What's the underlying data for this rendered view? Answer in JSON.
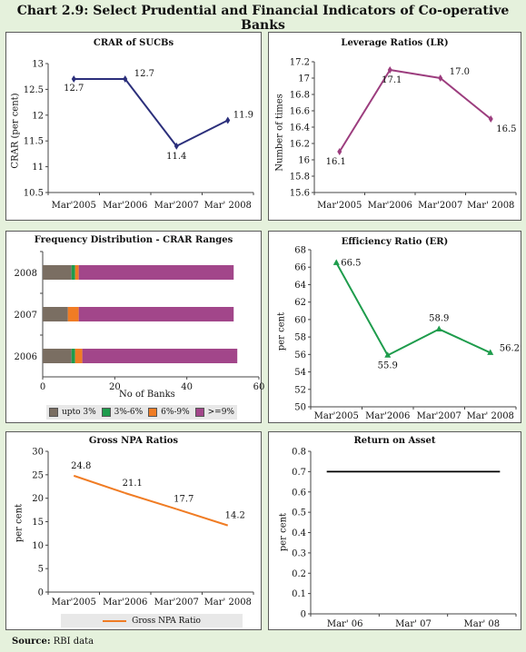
{
  "title": "Chart 2.9: Select Prudential and Financial Indicators of Co-operative Banks",
  "source_label": "Source:",
  "source_text": " RBI data",
  "colors": {
    "background": "#e5f1dc",
    "navy": "#2b2f7b",
    "magenta": "#9c3d7e",
    "green": "#1e9c4c",
    "orange": "#f07c24",
    "grey": "#7a6e62",
    "purple": "#a2468a",
    "black": "#000000"
  },
  "chart_data": [
    {
      "id": "crar",
      "type": "line",
      "title": "CRAR of SUCBs",
      "ylabel": "CRAR (per cent)",
      "xlabel": "",
      "categories": [
        "Mar'2005",
        "Mar'2006",
        "Mar'2007",
        "Mar' 2008"
      ],
      "values": [
        12.7,
        12.7,
        11.4,
        11.9
      ],
      "data_labels": [
        "12.7",
        "12.7",
        "11.4",
        "11.9"
      ],
      "ylim": [
        10.5,
        13
      ],
      "yticks": [
        "10.5",
        "11",
        "11.5",
        "12",
        "12.5",
        "13"
      ],
      "color": "#2b2f7b",
      "grid": false
    },
    {
      "id": "leverage",
      "type": "line",
      "title": "Leverage Ratios (LR)",
      "ylabel": "Number of times",
      "xlabel": "",
      "categories": [
        "Mar'2005",
        "Mar'2006",
        "Mar'2007",
        "Mar' 2008"
      ],
      "values": [
        16.1,
        17.1,
        17.0,
        16.5
      ],
      "data_labels": [
        "16.1",
        "17.1",
        "17.0",
        "16.5"
      ],
      "ylim": [
        15.6,
        17.2
      ],
      "yticks": [
        "15.6",
        "15.8",
        "16",
        "16.2",
        "16.4",
        "16.6",
        "16.8",
        "17",
        "17.2"
      ],
      "color": "#9c3d7e",
      "grid": false
    },
    {
      "id": "frequency",
      "type": "bar",
      "orientation": "horizontal",
      "stacked": true,
      "title": "Frequency Distribution - CRAR Ranges",
      "xlabel": "No of Banks",
      "ylabel": "",
      "categories": [
        "2008",
        "2007",
        "2006"
      ],
      "series": [
        {
          "name": "upto 3%",
          "values": [
            8,
            7,
            8
          ],
          "color": "#7a6e62"
        },
        {
          "name": "3%-6%",
          "values": [
            1,
            0,
            1
          ],
          "color": "#1e9c4c"
        },
        {
          "name": "6%-9%",
          "values": [
            1,
            3,
            2
          ],
          "color": "#f07c24"
        },
        {
          "name": ">=9%",
          "values": [
            43,
            43,
            43
          ],
          "color": "#a2468a"
        }
      ],
      "xlim": [
        0,
        60
      ],
      "xticks": [
        "0",
        "20",
        "40",
        "60"
      ],
      "legend": "bottom",
      "grid": false
    },
    {
      "id": "efficiency",
      "type": "line",
      "title": "Efficiency Ratio (ER)",
      "ylabel": "per cent",
      "xlabel": "",
      "categories": [
        "Mar'2005",
        "Mar'2006",
        "Mar'2007",
        "Mar' 2008"
      ],
      "values": [
        66.5,
        55.9,
        58.9,
        56.2
      ],
      "data_labels": [
        "66.5",
        "55.9",
        "58.9",
        "56.2"
      ],
      "ylim": [
        50,
        68
      ],
      "yticks": [
        "50",
        "52",
        "54",
        "56",
        "58",
        "60",
        "62",
        "64",
        "66",
        "68"
      ],
      "color": "#1e9c4c",
      "grid": false
    },
    {
      "id": "npa",
      "type": "line",
      "title": "Gross NPA Ratios",
      "ylabel": "per cent",
      "xlabel": "",
      "categories": [
        "Mar'2005",
        "Mar'2006",
        "Mar'2007",
        "Mar' 2008"
      ],
      "series": [
        {
          "name": "Gross NPA Ratio",
          "values": [
            24.8,
            21.1,
            17.7,
            14.2
          ],
          "color": "#f07c24"
        }
      ],
      "data_labels": [
        "24.8",
        "21.1",
        "17.7",
        "14.2"
      ],
      "ylim": [
        0,
        30
      ],
      "yticks": [
        "0",
        "5",
        "10",
        "15",
        "20",
        "25",
        "30"
      ],
      "legend": "bottom",
      "grid": false
    },
    {
      "id": "roa",
      "type": "line",
      "title": "Return on Asset",
      "ylabel": "per cent",
      "xlabel": "",
      "categories": [
        "Mar' 06",
        "Mar' 07",
        "Mar' 08"
      ],
      "values": [
        0.7,
        0.7,
        0.7
      ],
      "ylim": [
        0,
        0.8
      ],
      "yticks": [
        "0",
        "0.1",
        "0.2",
        "0.3",
        "0.4",
        "0.5",
        "0.6",
        "0.7",
        "0.8"
      ],
      "color": "#000000",
      "grid": false
    }
  ]
}
